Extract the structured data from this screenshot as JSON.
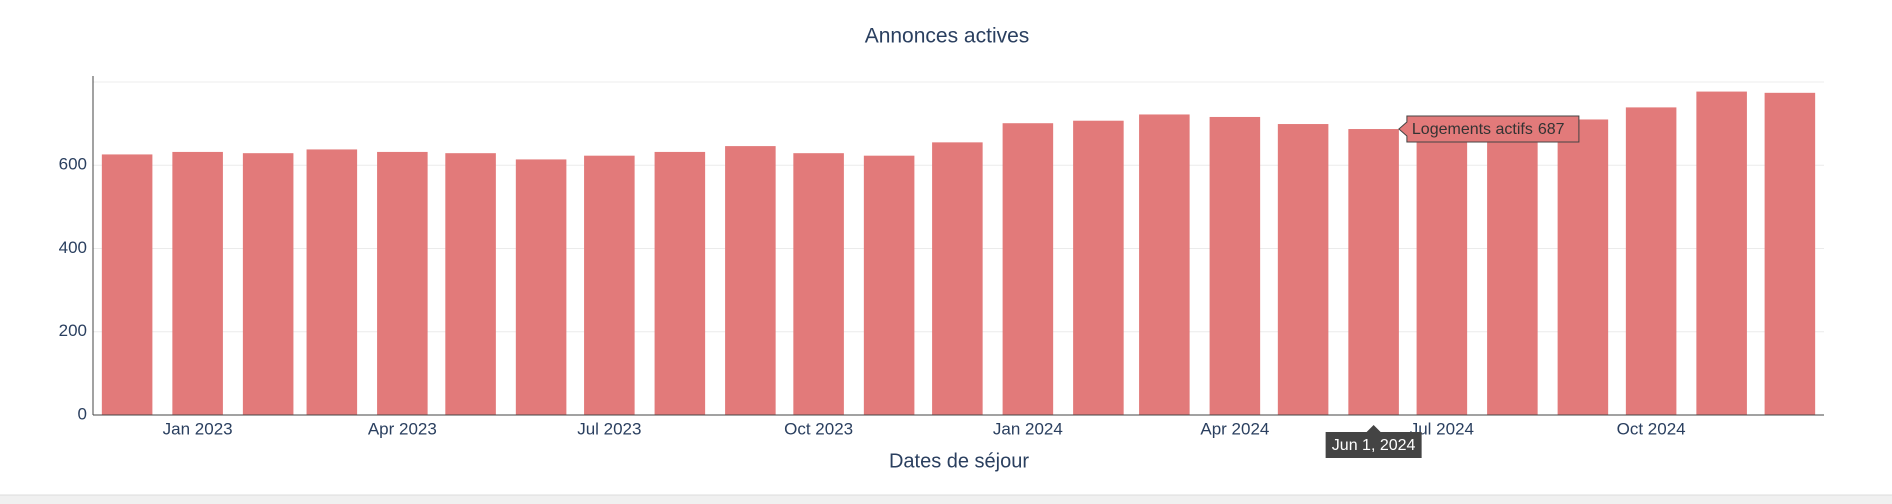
{
  "chart_data": {
    "type": "bar",
    "title": "Annonces actives",
    "x_label": "Dates de séjour",
    "x": [
      "2022-12-01",
      "2023-01-01",
      "2023-02-01",
      "2023-03-01",
      "2023-04-01",
      "2023-05-01",
      "2023-06-01",
      "2023-07-01",
      "2023-08-01",
      "2023-09-01",
      "2023-10-01",
      "2023-11-01",
      "2023-12-01",
      "2024-01-01",
      "2024-02-01",
      "2024-03-01",
      "2024-04-01",
      "2024-05-01",
      "2024-06-01",
      "2024-07-01",
      "2024-08-01",
      "2024-09-01",
      "2024-10-01",
      "2024-11-01",
      "2024-12-01"
    ],
    "series": [
      {
        "name": "Logements actifs",
        "color": "#e27a7a",
        "values": [
          626,
          632,
          629,
          638,
          632,
          629,
          614,
          623,
          632,
          646,
          629,
          623,
          655,
          701,
          707,
          722,
          716,
          699,
          687,
          695,
          700,
          710,
          739,
          777,
          774
        ]
      }
    ],
    "xlim": [
      "2022-11-16",
      "2024-12-16"
    ],
    "xticks": [
      {
        "value": "2023-01-01",
        "label": "Jan 2023"
      },
      {
        "value": "2023-04-01",
        "label": "Apr 2023"
      },
      {
        "value": "2023-07-01",
        "label": "Jul 2023"
      },
      {
        "value": "2023-10-01",
        "label": "Oct 2023"
      },
      {
        "value": "2024-01-01",
        "label": "Jan 2024"
      },
      {
        "value": "2024-04-01",
        "label": "Apr 2024"
      },
      {
        "value": "2024-07-01",
        "label": "Jul 2024"
      },
      {
        "value": "2024-10-01",
        "label": "Oct 2024"
      }
    ],
    "ylim": [
      0,
      800
    ],
    "yticks": [
      0,
      200,
      400,
      600
    ],
    "grid": true,
    "hover": {
      "index": 18,
      "x_label": "Jun 1, 2024"
    }
  }
}
